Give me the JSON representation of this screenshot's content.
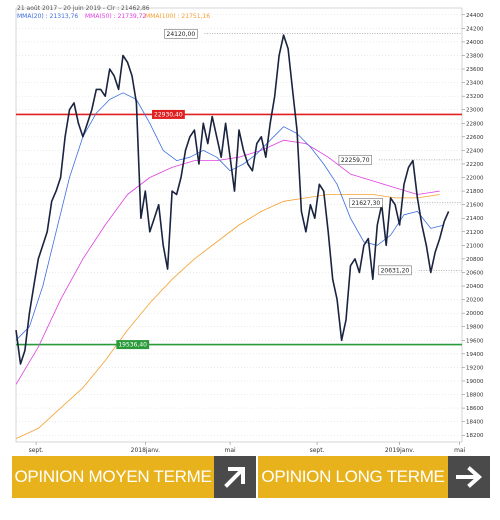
{
  "header": {
    "range": "21 août 2017 - 20 juin 2019 - Clr : 21462,86",
    "mma20": "MMA(20) : 21313,76",
    "mma50": "MMA(50) : 21739,72",
    "mma100": "MMA(100) : 21751,16"
  },
  "colors": {
    "price": "#1a2340",
    "mma20": "#3d6fe0",
    "mma50": "#e040e0",
    "mma100": "#f5a030",
    "resistance": "#e02020",
    "support": "#2a9a3a",
    "banner": "#e8b21c",
    "arrow_box": "#4a4a4a"
  },
  "chart_data": {
    "type": "line",
    "ylim": [
      18100,
      24500
    ],
    "yticks": [
      18200,
      18400,
      18600,
      18800,
      19000,
      19200,
      19400,
      19600,
      19800,
      20000,
      20200,
      20400,
      20600,
      20800,
      21000,
      21200,
      21400,
      21600,
      21800,
      22000,
      22200,
      22400,
      22600,
      22800,
      23000,
      23200,
      23400,
      23600,
      23800,
      24000,
      24200,
      24400
    ],
    "xlim": [
      0,
      100
    ],
    "xlabels": [
      {
        "x": 4.5,
        "label": "sept."
      },
      {
        "x": 29,
        "label": "2018janv."
      },
      {
        "x": 48,
        "label": "mai"
      },
      {
        "x": 67.5,
        "label": "sept."
      },
      {
        "x": 86,
        "label": "2019janv."
      },
      {
        "x": 99.5,
        "label": "mai"
      }
    ],
    "series": [
      {
        "key": "price",
        "values": [
          [
            0,
            19750
          ],
          [
            1,
            19250
          ],
          [
            2,
            19450
          ],
          [
            3,
            20000
          ],
          [
            4,
            20400
          ],
          [
            5,
            20800
          ],
          [
            6,
            21000
          ],
          [
            7,
            21200
          ],
          [
            8,
            21650
          ],
          [
            9,
            21800
          ],
          [
            10,
            22000
          ],
          [
            11,
            22600
          ],
          [
            12,
            23000
          ],
          [
            13,
            23100
          ],
          [
            14,
            22800
          ],
          [
            15,
            22600
          ],
          [
            16,
            22800
          ],
          [
            17,
            23000
          ],
          [
            18,
            23300
          ],
          [
            19,
            23300
          ],
          [
            20,
            23200
          ],
          [
            21,
            23600
          ],
          [
            22,
            23500
          ],
          [
            23,
            23300
          ],
          [
            24,
            23800
          ],
          [
            25,
            23700
          ],
          [
            26,
            23500
          ],
          [
            27,
            23100
          ],
          [
            28,
            21400
          ],
          [
            29,
            21800
          ],
          [
            30,
            21200
          ],
          [
            31,
            21400
          ],
          [
            32,
            21600
          ],
          [
            33,
            21000
          ],
          [
            34,
            20650
          ],
          [
            35,
            21800
          ],
          [
            36,
            21750
          ],
          [
            37,
            22000
          ],
          [
            38,
            22400
          ],
          [
            39,
            22600
          ],
          [
            40,
            22700
          ],
          [
            41,
            22200
          ],
          [
            42,
            22800
          ],
          [
            43,
            22500
          ],
          [
            44,
            22900
          ],
          [
            45,
            22600
          ],
          [
            46,
            22300
          ],
          [
            47,
            22800
          ],
          [
            48,
            22300
          ],
          [
            49,
            21800
          ],
          [
            50,
            22700
          ],
          [
            51,
            22400
          ],
          [
            52,
            22200
          ],
          [
            53,
            22100
          ],
          [
            54,
            22500
          ],
          [
            55,
            22600
          ],
          [
            56,
            22300
          ],
          [
            57,
            22800
          ],
          [
            58,
            23200
          ],
          [
            59,
            23800
          ],
          [
            60,
            24100
          ],
          [
            61,
            23900
          ],
          [
            62,
            23300
          ],
          [
            63,
            22700
          ],
          [
            64,
            21500
          ],
          [
            65,
            21200
          ],
          [
            66,
            21600
          ],
          [
            67,
            21400
          ],
          [
            68,
            21900
          ],
          [
            69,
            21800
          ],
          [
            70,
            21200
          ],
          [
            71,
            20500
          ],
          [
            72,
            20200
          ],
          [
            73,
            19600
          ],
          [
            74,
            19900
          ],
          [
            75,
            20700
          ],
          [
            76,
            20800
          ],
          [
            77,
            20600
          ],
          [
            78,
            21000
          ],
          [
            79,
            21100
          ],
          [
            80,
            20500
          ],
          [
            81,
            21300
          ],
          [
            82,
            21600
          ],
          [
            83,
            21000
          ],
          [
            84,
            21700
          ],
          [
            85,
            21600
          ],
          [
            86,
            21300
          ],
          [
            87,
            21900
          ],
          [
            88,
            22150
          ],
          [
            89,
            22250
          ],
          [
            90,
            21700
          ],
          [
            91,
            21300
          ],
          [
            92,
            21000
          ],
          [
            93,
            20600
          ],
          [
            94,
            20900
          ],
          [
            95,
            21100
          ],
          [
            96,
            21350
          ],
          [
            97,
            21500
          ]
        ]
      },
      {
        "key": "mma20",
        "values": [
          [
            0,
            19600
          ],
          [
            3,
            19800
          ],
          [
            6,
            20400
          ],
          [
            9,
            21200
          ],
          [
            12,
            22000
          ],
          [
            15,
            22600
          ],
          [
            18,
            22950
          ],
          [
            21,
            23150
          ],
          [
            24,
            23250
          ],
          [
            27,
            23150
          ],
          [
            30,
            22800
          ],
          [
            33,
            22400
          ],
          [
            36,
            22250
          ],
          [
            39,
            22300
          ],
          [
            42,
            22400
          ],
          [
            45,
            22300
          ],
          [
            48,
            22100
          ],
          [
            51,
            22200
          ],
          [
            54,
            22350
          ],
          [
            57,
            22550
          ],
          [
            60,
            22750
          ],
          [
            63,
            22650
          ],
          [
            66,
            22450
          ],
          [
            69,
            22200
          ],
          [
            72,
            21900
          ],
          [
            75,
            21400
          ],
          [
            78,
            21050
          ],
          [
            81,
            21000
          ],
          [
            84,
            21150
          ],
          [
            87,
            21450
          ],
          [
            90,
            21500
          ],
          [
            93,
            21250
          ],
          [
            96,
            21300
          ]
        ]
      },
      {
        "key": "mma50",
        "values": [
          [
            0,
            18950
          ],
          [
            5,
            19500
          ],
          [
            10,
            20200
          ],
          [
            15,
            20800
          ],
          [
            20,
            21300
          ],
          [
            25,
            21750
          ],
          [
            30,
            22000
          ],
          [
            35,
            22150
          ],
          [
            40,
            22250
          ],
          [
            45,
            22250
          ],
          [
            50,
            22300
          ],
          [
            55,
            22400
          ],
          [
            60,
            22550
          ],
          [
            65,
            22500
          ],
          [
            70,
            22300
          ],
          [
            75,
            22050
          ],
          [
            80,
            21950
          ],
          [
            85,
            21850
          ],
          [
            90,
            21750
          ],
          [
            95,
            21800
          ]
        ]
      },
      {
        "key": "mma100",
        "values": [
          [
            0,
            18150
          ],
          [
            5,
            18300
          ],
          [
            10,
            18600
          ],
          [
            15,
            18900
          ],
          [
            20,
            19300
          ],
          [
            25,
            19750
          ],
          [
            30,
            20150
          ],
          [
            35,
            20500
          ],
          [
            40,
            20800
          ],
          [
            45,
            21050
          ],
          [
            50,
            21300
          ],
          [
            55,
            21500
          ],
          [
            60,
            21650
          ],
          [
            65,
            21700
          ],
          [
            70,
            21750
          ],
          [
            75,
            21750
          ],
          [
            80,
            21750
          ],
          [
            85,
            21700
          ],
          [
            90,
            21700
          ],
          [
            95,
            21750
          ]
        ]
      }
    ],
    "annotations": {
      "peak": "24120,00",
      "resistance_level": "22930,40",
      "support_level": "19536,40",
      "mid_high": "22259,70",
      "mid_low": "21627,30",
      "low": "20631,20"
    },
    "annotation_values": {
      "peak": 24120,
      "resistance_level": 22930.4,
      "support_level": 19536.4,
      "mid_high": 22259.7,
      "mid_low": 21627.3,
      "low": 20631.2
    }
  },
  "banner": {
    "left_label": "OPINION MOYEN TERME",
    "right_label": "OPINION LONG TERME",
    "left_icon": "arrow-up-right-icon",
    "right_icon": "arrow-right-icon"
  }
}
